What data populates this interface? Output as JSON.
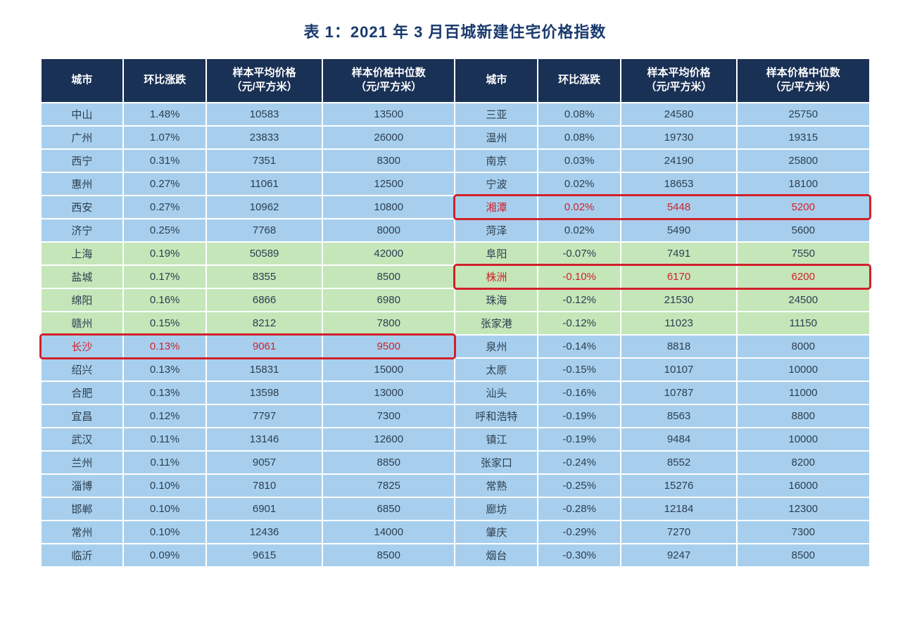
{
  "title": "表 1：2021 年 3 月百城新建住宅价格指数",
  "headers": {
    "city": "城市",
    "pct": "环比涨跌",
    "avg": "样本平均价格\n（元/平方米）",
    "median": "样本价格中位数\n（元/平方米）"
  },
  "colors": {
    "header_bg": "#1a3156",
    "header_fg": "#ffffff",
    "band_blue": "#a7cfed",
    "band_green": "#c4e6b9",
    "highlight_border": "#d1202b",
    "highlight_text": "#d1202b",
    "title_color": "#1a3a6e"
  },
  "band_pattern": [
    "blue",
    "blue",
    "blue",
    "blue",
    "blue",
    "blue",
    "green",
    "green",
    "green",
    "green",
    "blue",
    "blue",
    "blue",
    "blue",
    "blue",
    "blue",
    "blue",
    "blue",
    "blue",
    "blue"
  ],
  "left": [
    {
      "city": "中山",
      "pct": "1.48%",
      "avg": "10583",
      "median": "13500"
    },
    {
      "city": "广州",
      "pct": "1.07%",
      "avg": "23833",
      "median": "26000"
    },
    {
      "city": "西宁",
      "pct": "0.31%",
      "avg": "7351",
      "median": "8300"
    },
    {
      "city": "惠州",
      "pct": "0.27%",
      "avg": "11061",
      "median": "12500"
    },
    {
      "city": "西安",
      "pct": "0.27%",
      "avg": "10962",
      "median": "10800"
    },
    {
      "city": "济宁",
      "pct": "0.25%",
      "avg": "7768",
      "median": "8000"
    },
    {
      "city": "上海",
      "pct": "0.19%",
      "avg": "50589",
      "median": "42000"
    },
    {
      "city": "盐城",
      "pct": "0.17%",
      "avg": "8355",
      "median": "8500"
    },
    {
      "city": "绵阳",
      "pct": "0.16%",
      "avg": "6866",
      "median": "6980"
    },
    {
      "city": "赣州",
      "pct": "0.15%",
      "avg": "8212",
      "median": "7800"
    },
    {
      "city": "长沙",
      "pct": "0.13%",
      "avg": "9061",
      "median": "9500",
      "highlight": true
    },
    {
      "city": "绍兴",
      "pct": "0.13%",
      "avg": "15831",
      "median": "15000"
    },
    {
      "city": "合肥",
      "pct": "0.13%",
      "avg": "13598",
      "median": "13000"
    },
    {
      "city": "宜昌",
      "pct": "0.12%",
      "avg": "7797",
      "median": "7300"
    },
    {
      "city": "武汉",
      "pct": "0.11%",
      "avg": "13146",
      "median": "12600"
    },
    {
      "city": "兰州",
      "pct": "0.11%",
      "avg": "9057",
      "median": "8850"
    },
    {
      "city": "淄博",
      "pct": "0.10%",
      "avg": "7810",
      "median": "7825"
    },
    {
      "city": "邯郸",
      "pct": "0.10%",
      "avg": "6901",
      "median": "6850"
    },
    {
      "city": "常州",
      "pct": "0.10%",
      "avg": "12436",
      "median": "14000"
    },
    {
      "city": "临沂",
      "pct": "0.09%",
      "avg": "9615",
      "median": "8500"
    }
  ],
  "right": [
    {
      "city": "三亚",
      "pct": "0.08%",
      "avg": "24580",
      "median": "25750"
    },
    {
      "city": "温州",
      "pct": "0.08%",
      "avg": "19730",
      "median": "19315"
    },
    {
      "city": "南京",
      "pct": "0.03%",
      "avg": "24190",
      "median": "25800"
    },
    {
      "city": "宁波",
      "pct": "0.02%",
      "avg": "18653",
      "median": "18100"
    },
    {
      "city": "湘潭",
      "pct": "0.02%",
      "avg": "5448",
      "median": "5200",
      "highlight": true
    },
    {
      "city": "菏泽",
      "pct": "0.02%",
      "avg": "5490",
      "median": "5600"
    },
    {
      "city": "阜阳",
      "pct": "-0.07%",
      "avg": "7491",
      "median": "7550"
    },
    {
      "city": "株洲",
      "pct": "-0.10%",
      "avg": "6170",
      "median": "6200",
      "highlight": true
    },
    {
      "city": "珠海",
      "pct": "-0.12%",
      "avg": "21530",
      "median": "24500"
    },
    {
      "city": "张家港",
      "pct": "-0.12%",
      "avg": "11023",
      "median": "11150"
    },
    {
      "city": "泉州",
      "pct": "-0.14%",
      "avg": "8818",
      "median": "8000"
    },
    {
      "city": "太原",
      "pct": "-0.15%",
      "avg": "10107",
      "median": "10000"
    },
    {
      "city": "汕头",
      "pct": "-0.16%",
      "avg": "10787",
      "median": "11000"
    },
    {
      "city": "呼和浩特",
      "pct": "-0.19%",
      "avg": "8563",
      "median": "8800"
    },
    {
      "city": "镇江",
      "pct": "-0.19%",
      "avg": "9484",
      "median": "10000"
    },
    {
      "city": "张家口",
      "pct": "-0.24%",
      "avg": "8552",
      "median": "8200"
    },
    {
      "city": "常熟",
      "pct": "-0.25%",
      "avg": "15276",
      "median": "16000"
    },
    {
      "city": "廊坊",
      "pct": "-0.28%",
      "avg": "12184",
      "median": "12300"
    },
    {
      "city": "肇庆",
      "pct": "-0.29%",
      "avg": "7270",
      "median": "7300"
    },
    {
      "city": "烟台",
      "pct": "-0.30%",
      "avg": "9247",
      "median": "8500"
    }
  ]
}
